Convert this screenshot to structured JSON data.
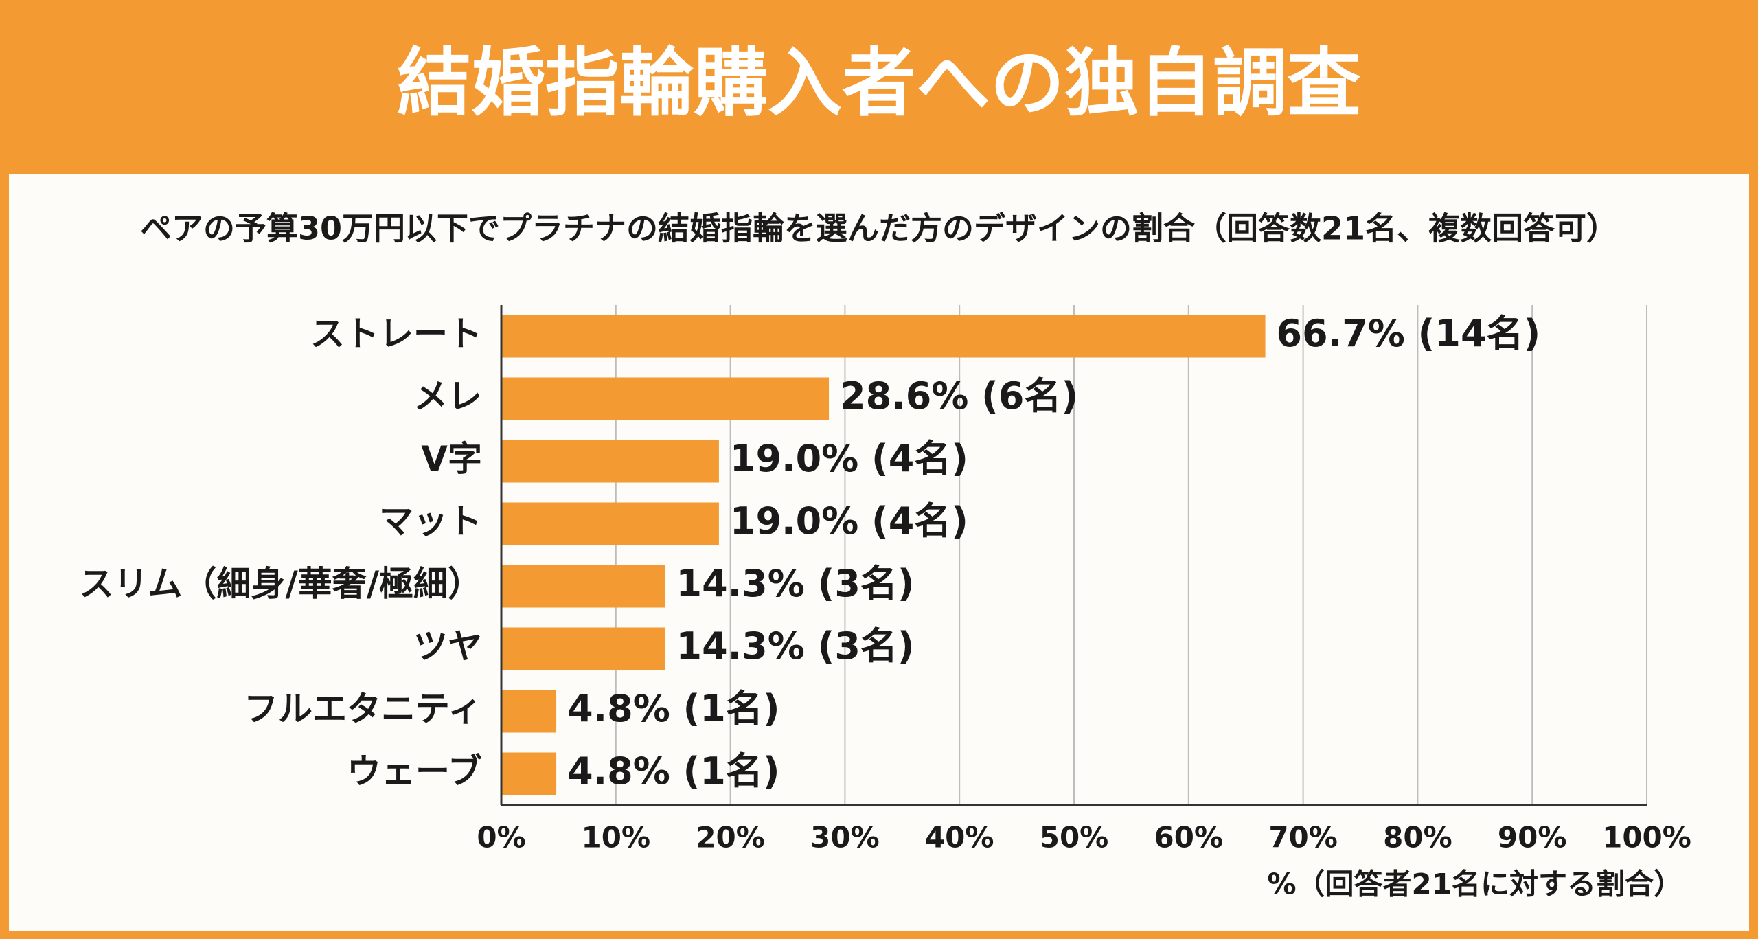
{
  "chart_data": {
    "type": "bar",
    "orientation": "horizontal",
    "title": "結婚指輪購入者への独自調査",
    "subtitle": "ペアの予算30万円以下でプラチナの結婚指輪を選んだ方のデザインの割合（回答数21名、複数回答可）",
    "categories": [
      "ストレート",
      "メレ",
      "V字",
      "マット",
      "スリム（細身/華奢/極細）",
      "ツヤ",
      "フルエタニティ",
      "ウェーブ"
    ],
    "values": [
      66.7,
      28.6,
      19.0,
      19.0,
      14.3,
      14.3,
      4.8,
      4.8
    ],
    "value_labels": [
      "66.7% (14名)",
      "28.6% (6名)",
      "19.0% (4名)",
      "19.0% (4名)",
      "14.3% (3名)",
      "14.3% (3名)",
      "4.8% (1名)",
      "4.8% (1名)"
    ],
    "color": "#f39a33",
    "xlim": [
      0,
      100
    ],
    "xticks": [
      {
        "value": 0,
        "label": "0%"
      },
      {
        "value": 10,
        "label": "10%"
      },
      {
        "value": 20,
        "label": "20%"
      },
      {
        "value": 30,
        "label": "30%"
      },
      {
        "value": 40,
        "label": "40%"
      },
      {
        "value": 50,
        "label": "50%"
      },
      {
        "value": 60,
        "label": "60%"
      },
      {
        "value": 70,
        "label": "70%"
      },
      {
        "value": 80,
        "label": "80%"
      },
      {
        "value": 90,
        "label": "90%"
      },
      {
        "value": 100,
        "label": "100%"
      }
    ],
    "xlabel": "%（回答者21名に対する割合）",
    "grid": true
  }
}
